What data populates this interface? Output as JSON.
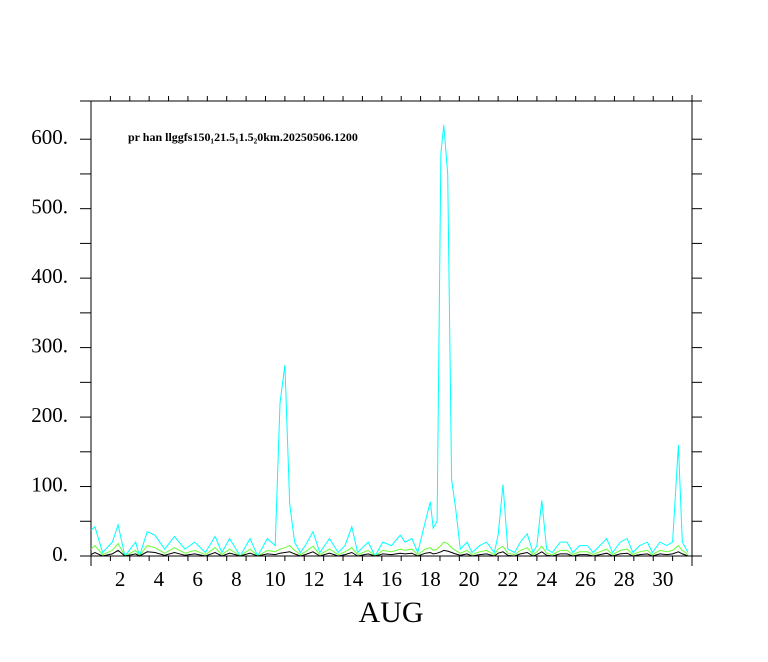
{
  "chart_data": {
    "type": "line",
    "title": "pr han llggfs150₁21.5₁1.5₂0km.20250506.1200",
    "x_label": "AUG",
    "xlim": [
      1,
      32
    ],
    "xticks": [
      {
        "value": 2.5,
        "label": "2"
      },
      {
        "value": 4.5,
        "label": "4"
      },
      {
        "value": 6.5,
        "label": "6"
      },
      {
        "value": 8.5,
        "label": "8"
      },
      {
        "value": 10.5,
        "label": "10"
      },
      {
        "value": 12.5,
        "label": "12"
      },
      {
        "value": 14.5,
        "label": "14"
      },
      {
        "value": 16.5,
        "label": "16"
      },
      {
        "value": 18.5,
        "label": "18"
      },
      {
        "value": 20.5,
        "label": "20"
      },
      {
        "value": 22.5,
        "label": "22"
      },
      {
        "value": 24.5,
        "label": "24"
      },
      {
        "value": 26.5,
        "label": "26"
      },
      {
        "value": 28.5,
        "label": "28"
      },
      {
        "value": 30.5,
        "label": "30"
      }
    ],
    "ylim": [
      0,
      655
    ],
    "yticks": [
      {
        "value": 0,
        "label": "0."
      },
      {
        "value": 100,
        "label": "100."
      },
      {
        "value": 200,
        "label": "200."
      },
      {
        "value": 300,
        "label": "300."
      },
      {
        "value": 400,
        "label": "400."
      },
      {
        "value": 500,
        "label": "500."
      },
      {
        "value": 600,
        "label": "600."
      }
    ],
    "x": [
      1.0,
      1.2,
      1.6,
      2.1,
      2.4,
      2.75,
      3.3,
      3.5,
      3.9,
      4.3,
      4.8,
      5.3,
      5.85,
      6.35,
      6.9,
      7.4,
      7.75,
      8.15,
      8.7,
      9.2,
      9.6,
      10.1,
      10.5,
      10.75,
      11.0,
      11.25,
      11.5,
      11.8,
      12.05,
      12.45,
      12.8,
      13.3,
      13.75,
      14.1,
      14.45,
      14.75,
      15.3,
      15.65,
      16.05,
      16.5,
      16.95,
      17.2,
      17.55,
      17.85,
      18.25,
      18.5,
      18.65,
      18.85,
      19.05,
      19.2,
      19.4,
      19.6,
      19.8,
      20.05,
      20.4,
      20.65,
      21.05,
      21.4,
      21.8,
      22.0,
      22.25,
      22.5,
      22.85,
      23.15,
      23.5,
      23.8,
      24.0,
      24.25,
      24.5,
      24.8,
      25.2,
      25.55,
      25.85,
      26.2,
      26.6,
      26.9,
      27.25,
      27.6,
      27.9,
      28.3,
      28.65,
      28.95,
      29.3,
      29.7,
      29.95,
      30.35,
      30.7,
      31.0,
      31.3,
      31.5,
      31.8
    ],
    "series": [
      {
        "color": "#00ffff",
        "values": [
          37,
          42,
          5,
          20,
          45,
          0,
          20,
          0,
          35,
          30,
          10,
          28,
          10,
          20,
          5,
          28,
          5,
          25,
          0,
          25,
          0,
          25,
          15,
          220,
          275,
          75,
          20,
          5,
          15,
          35,
          5,
          25,
          5,
          15,
          42,
          5,
          20,
          0,
          20,
          15,
          30,
          20,
          25,
          5,
          50,
          78,
          40,
          50,
          580,
          620,
          550,
          110,
          70,
          10,
          20,
          5,
          15,
          20,
          5,
          30,
          103,
          10,
          5,
          20,
          32,
          5,
          15,
          80,
          10,
          5,
          20,
          20,
          5,
          15,
          15,
          5,
          15,
          25,
          5,
          20,
          25,
          5,
          15,
          20,
          5,
          20,
          15,
          20,
          160,
          20,
          5
        ]
      },
      {
        "color": "#66ff33",
        "values": [
          10,
          15,
          2,
          8,
          18,
          0,
          8,
          0,
          15,
          12,
          4,
          12,
          4,
          8,
          2,
          12,
          2,
          10,
          0,
          10,
          0,
          8,
          6,
          10,
          12,
          15,
          8,
          2,
          6,
          14,
          2,
          10,
          2,
          6,
          12,
          2,
          8,
          0,
          8,
          6,
          10,
          8,
          10,
          2,
          10,
          12,
          8,
          10,
          15,
          20,
          18,
          12,
          8,
          4,
          8,
          2,
          6,
          8,
          2,
          10,
          14,
          4,
          2,
          8,
          12,
          2,
          6,
          14,
          4,
          2,
          8,
          8,
          2,
          6,
          6,
          2,
          6,
          10,
          2,
          8,
          10,
          2,
          6,
          8,
          2,
          8,
          6,
          8,
          15,
          8,
          2
        ]
      },
      {
        "color": "#000000",
        "values": [
          2,
          5,
          0,
          3,
          8,
          0,
          3,
          0,
          6,
          5,
          1,
          5,
          1,
          3,
          0,
          5,
          0,
          4,
          0,
          4,
          0,
          3,
          2,
          4,
          5,
          6,
          3,
          0,
          2,
          6,
          0,
          4,
          0,
          2,
          5,
          0,
          3,
          0,
          3,
          2,
          4,
          3,
          4,
          0,
          4,
          5,
          3,
          4,
          6,
          8,
          7,
          5,
          3,
          1,
          3,
          0,
          2,
          3,
          0,
          4,
          6,
          1,
          0,
          3,
          5,
          0,
          2,
          6,
          1,
          0,
          3,
          3,
          0,
          2,
          2,
          0,
          2,
          4,
          0,
          3,
          4,
          0,
          2,
          3,
          0,
          3,
          2,
          3,
          6,
          3,
          0
        ]
      }
    ]
  }
}
